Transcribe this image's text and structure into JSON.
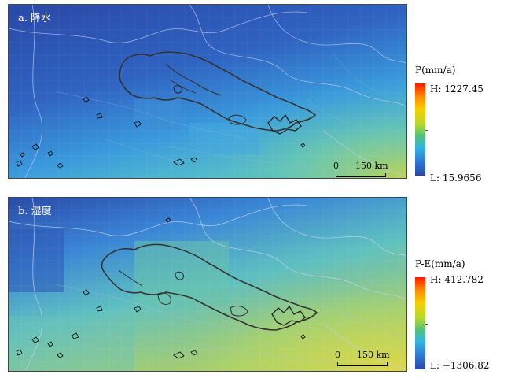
{
  "panel_a": {
    "label": "a. 降水",
    "legend_title": "P(mm/a)",
    "high": "H: 1227.45",
    "low": "L: 15.9656",
    "scale_zero": "0",
    "scale_distance": "150 km",
    "colors": {
      "dry": "#2f55b8",
      "mid": "#3aa6e0",
      "wet": "#c6d84a"
    }
  },
  "panel_b": {
    "label": "b. 湿度",
    "legend_title": "P-E(mm/a)",
    "high": "H: 412.782",
    "low": "L: −1306.82",
    "scale_zero": "0",
    "scale_distance": "150 km",
    "colors": {
      "dry": "#2f55b8",
      "mid": "#38a9df",
      "wet": "#d9d74a"
    }
  }
}
